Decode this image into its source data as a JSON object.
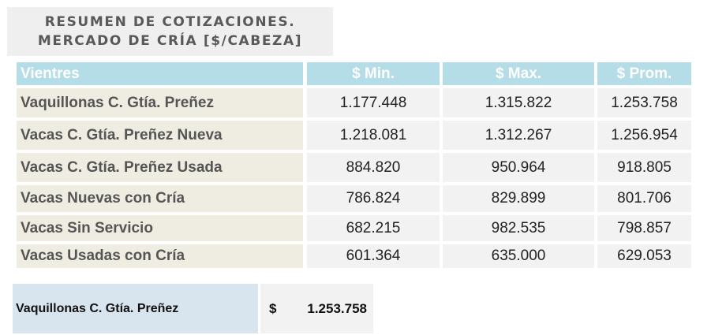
{
  "title": {
    "line1": "RESUMEN DE COTIZACIONES.",
    "line2": "MERCADO DE CRÍA [$/CABEZA]"
  },
  "table": {
    "headers": [
      "Vientres",
      "$ Min.",
      "$ Max.",
      "$ Prom."
    ],
    "rows": [
      {
        "label": "Vaquillonas C. Gtía. Preñez",
        "min": "1.177.448",
        "max": "1.315.822",
        "prom": "1.253.758"
      },
      {
        "label": "Vacas C. Gtía. Preñez Nueva",
        "min": "1.218.081",
        "max": "1.312.267",
        "prom": "1.256.954"
      },
      {
        "label": "Vacas C. Gtía. Preñez Usada",
        "min": "884.820",
        "max": "950.964",
        "prom": "918.805"
      },
      {
        "label": "Vacas Nuevas con Cría",
        "min": "786.824",
        "max": "829.899",
        "prom": "801.706"
      },
      {
        "label": "Vacas Sin Servicio",
        "min": "682.215",
        "max": "982.535",
        "prom": "798.857"
      },
      {
        "label": "Vacas Usadas con Cría",
        "min": "601.364",
        "max": "635.000",
        "prom": "629.053"
      }
    ]
  },
  "summary": {
    "label": "Vaquillonas C. Gtía. Preñez",
    "currency": "$",
    "value": "1.253.758"
  }
}
